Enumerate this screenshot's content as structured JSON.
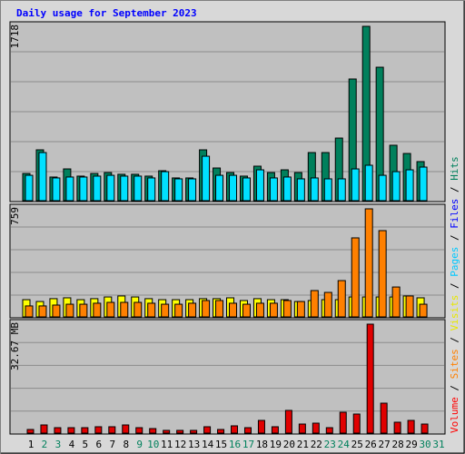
{
  "legend": [
    {
      "name": "Volume",
      "color": "#ff0000"
    },
    {
      "name": "Sites",
      "color": "#ff8000"
    },
    {
      "name": "Visits",
      "color": "#e8e800"
    },
    {
      "name": "Pages",
      "color": "#00c8ff"
    },
    {
      "name": "Files",
      "color": "#0000ff"
    },
    {
      "name": "Hits",
      "color": "#00805c"
    }
  ],
  "chart_data": [
    {
      "type": "bar",
      "title": "Daily usage for September 2023",
      "ylim": [
        0,
        1718
      ],
      "yticks": [
        1718
      ],
      "series": [
        {
          "color": "#00805c",
          "values": [
            268,
            501,
            233,
            313,
            242,
            268,
            277,
            260,
            260,
            242,
            295,
            224,
            224,
            501,
            322,
            277,
            242,
            340,
            277,
            304,
            277,
            474,
            474,
            617,
            1199,
            1718,
            1315,
            546,
            465,
            385,
            null
          ]
        },
        {
          "color": "#00e0ff",
          "values": [
            250,
            474,
            224,
            233,
            233,
            242,
            250,
            242,
            242,
            224,
            286,
            215,
            215,
            438,
            250,
            250,
            224,
            304,
            224,
            233,
            215,
            224,
            215,
            215,
            313,
            349,
            250,
            286,
            304,
            331,
            null
          ]
        }
      ]
    },
    {
      "type": "bar",
      "ylim": [
        0,
        759
      ],
      "yticks": [
        759
      ],
      "series": [
        {
          "color": "#ffff00",
          "values": [
            121,
            108,
            128,
            134,
            121,
            128,
            140,
            147,
            140,
            128,
            121,
            121,
            121,
            128,
            128,
            134,
            115,
            128,
            121,
            121,
            108,
            115,
            121,
            121,
            140,
            140,
            140,
            140,
            147,
            134,
            null
          ]
        },
        {
          "color": "#ff8000",
          "values": [
            77,
            77,
            83,
            89,
            89,
            96,
            102,
            102,
            102,
            96,
            89,
            89,
            96,
            115,
            115,
            96,
            89,
            96,
            96,
            115,
            108,
            185,
            172,
            255,
            555,
            759,
            606,
            210,
            147,
            89,
            null
          ]
        }
      ]
    },
    {
      "type": "bar",
      "ylim": [
        0,
        32.67
      ],
      "yticks": [
        {
          "value": 32.67,
          "label": "32.67 MB"
        }
      ],
      "series": [
        {
          "color": "#e00000",
          "values": [
            1.09,
            2.45,
            1.63,
            1.63,
            1.63,
            1.91,
            1.91,
            2.45,
            1.63,
            1.36,
            0.82,
            0.82,
            0.82,
            1.91,
            1.09,
            2.18,
            1.63,
            3.81,
            1.91,
            6.81,
            2.72,
            2.99,
            1.63,
            6.26,
            5.72,
            32.67,
            8.98,
            3.27,
            3.81,
            2.72,
            null
          ]
        }
      ],
      "categories": [
        "1",
        "2",
        "3",
        "4",
        "5",
        "6",
        "7",
        "8",
        "9",
        "10",
        "11",
        "12",
        "13",
        "14",
        "15",
        "16",
        "17",
        "18",
        "19",
        "20",
        "21",
        "22",
        "23",
        "24",
        "25",
        "26",
        "27",
        "28",
        "29",
        "30",
        "31"
      ],
      "category_colors": [
        "#000000",
        "#00805c",
        "#00805c",
        "#000000",
        "#000000",
        "#000000",
        "#000000",
        "#000000",
        "#00805c",
        "#00805c",
        "#000000",
        "#000000",
        "#000000",
        "#000000",
        "#000000",
        "#00805c",
        "#00805c",
        "#000000",
        "#000000",
        "#000000",
        "#000000",
        "#000000",
        "#00805c",
        "#00805c",
        "#000000",
        "#000000",
        "#000000",
        "#000000",
        "#000000",
        "#00805c",
        "#00805c"
      ]
    }
  ]
}
